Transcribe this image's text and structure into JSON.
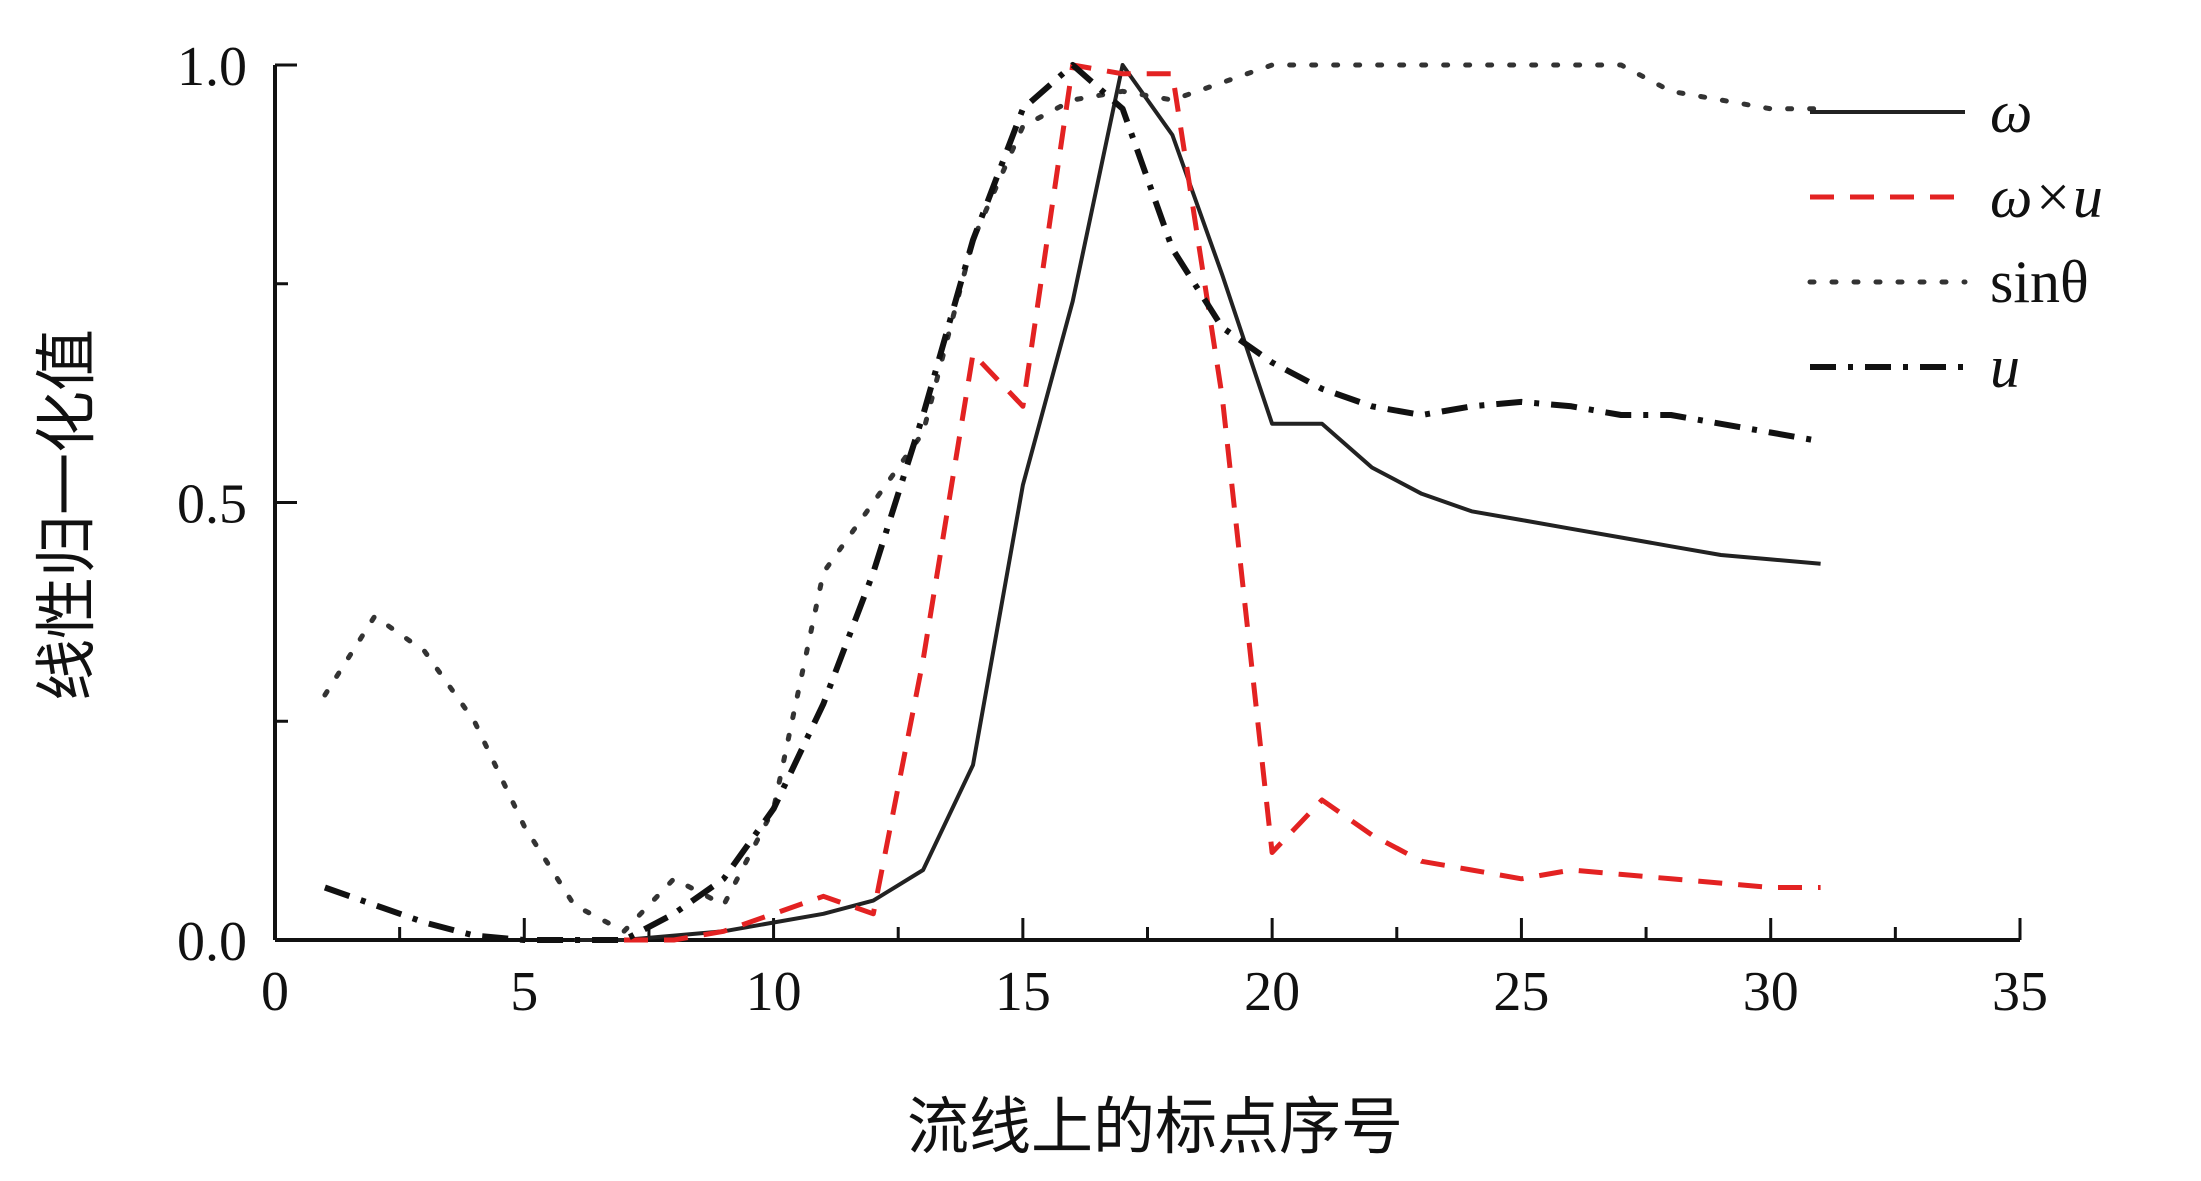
{
  "chart_data": {
    "type": "line",
    "xlabel": "流线上的标点序号",
    "ylabel": "线性归一化值",
    "xlim": [
      0,
      35
    ],
    "ylim": [
      0,
      1.0
    ],
    "xticks": [
      0,
      5,
      10,
      15,
      20,
      25,
      30,
      35
    ],
    "xtick_labels": [
      "0",
      "5",
      "10",
      "15",
      "20",
      "25",
      "30",
      "35"
    ],
    "yticks": [
      0.0,
      0.5,
      1.0
    ],
    "ytick_labels": [
      "0.0",
      "0.5",
      "1.0"
    ],
    "legend_position": "top-right",
    "series": [
      {
        "name": "ω",
        "style": "solid",
        "color": "#222222",
        "x": [
          6,
          7,
          8,
          9,
          10,
          11,
          12,
          13,
          14,
          15,
          16,
          17,
          18,
          19,
          20,
          21,
          22,
          23,
          24,
          25,
          26,
          27,
          28,
          29,
          30,
          31
        ],
        "y": [
          0.0,
          0.0,
          0.005,
          0.01,
          0.02,
          0.03,
          0.045,
          0.08,
          0.2,
          0.52,
          0.73,
          1.0,
          0.92,
          0.76,
          0.59,
          0.59,
          0.54,
          0.51,
          0.49,
          0.48,
          0.47,
          0.46,
          0.45,
          0.44,
          0.435,
          0.43
        ]
      },
      {
        "name": "ω×u",
        "style": "dashed",
        "color": "#e32222",
        "x": [
          7,
          8,
          9,
          10,
          11,
          12,
          13,
          14,
          15,
          16,
          17,
          18,
          19,
          20,
          21,
          22,
          23,
          24,
          25,
          26,
          27,
          28,
          29,
          30,
          31
        ],
        "y": [
          0.0,
          0.0,
          0.01,
          0.03,
          0.05,
          0.03,
          0.32,
          0.67,
          0.61,
          1.0,
          0.99,
          0.99,
          0.62,
          0.1,
          0.16,
          0.12,
          0.09,
          0.08,
          0.07,
          0.08,
          0.075,
          0.07,
          0.065,
          0.06,
          0.06
        ]
      },
      {
        "name": "sinθ",
        "style": "dotted",
        "color": "#333333",
        "x": [
          1,
          2,
          3,
          4,
          5,
          6,
          7,
          8,
          9,
          10,
          11,
          12,
          13,
          14,
          15,
          16,
          17,
          18,
          19,
          20,
          21,
          22,
          23,
          24,
          25,
          26,
          27,
          28,
          29,
          30,
          31
        ],
        "y": [
          0.28,
          0.37,
          0.33,
          0.25,
          0.13,
          0.04,
          0.01,
          0.07,
          0.04,
          0.15,
          0.42,
          0.5,
          0.58,
          0.8,
          0.93,
          0.96,
          0.97,
          0.96,
          0.98,
          1.0,
          1.0,
          1.0,
          1.0,
          1.0,
          1.0,
          1.0,
          1.0,
          0.97,
          0.96,
          0.95,
          0.95
        ]
      },
      {
        "name": "u",
        "style": "dashdot",
        "color": "#111111",
        "x": [
          1,
          2,
          3,
          4,
          5,
          6,
          7,
          8,
          9,
          10,
          11,
          12,
          13,
          14,
          15,
          16,
          17,
          18,
          19,
          20,
          21,
          22,
          23,
          24,
          25,
          26,
          27,
          28,
          29,
          30,
          31
        ],
        "y": [
          0.06,
          0.04,
          0.02,
          0.005,
          0.0,
          0.0,
          0.0,
          0.03,
          0.07,
          0.15,
          0.27,
          0.42,
          0.6,
          0.8,
          0.95,
          1.0,
          0.95,
          0.79,
          0.7,
          0.66,
          0.63,
          0.61,
          0.6,
          0.61,
          0.615,
          0.61,
          0.6,
          0.6,
          0.59,
          0.58,
          0.57
        ]
      }
    ]
  }
}
